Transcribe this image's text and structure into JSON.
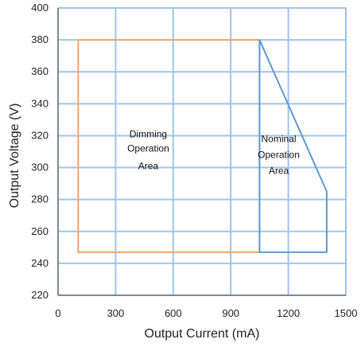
{
  "chart_data": {
    "type": "line",
    "xlabel": "Output Current (mA)",
    "ylabel": "Output  Voltage (V)",
    "xlim": [
      0,
      1500
    ],
    "ylim": [
      220,
      400
    ],
    "x_ticks": [
      0,
      300,
      600,
      900,
      1200,
      1500
    ],
    "y_ticks": [
      220,
      240,
      260,
      280,
      300,
      320,
      340,
      360,
      380,
      400
    ],
    "grid": true,
    "series": [
      {
        "color": "#f4a46a",
        "x": [
          105,
          1050,
          1050,
          105,
          105
        ],
        "y": [
          380,
          380,
          247,
          247,
          380
        ]
      },
      {
        "color": "#5b9bd5",
        "x": [
          1050,
          1400,
          1400,
          1050,
          1050
        ],
        "y": [
          380,
          285,
          247,
          247,
          380
        ]
      }
    ],
    "annotations": [
      {
        "lines": [
          "Dimming",
          "Operation",
          "Area"
        ],
        "x": 470,
        "y": [
          321,
          312,
          301
        ]
      },
      {
        "lines": [
          "Nominal",
          "Operation",
          "Area"
        ],
        "x": 1150,
        "y": [
          318,
          308,
          298
        ]
      }
    ]
  },
  "colors": {
    "axis": "#666666",
    "grid": "#9fc5e8",
    "text": "#222222"
  }
}
